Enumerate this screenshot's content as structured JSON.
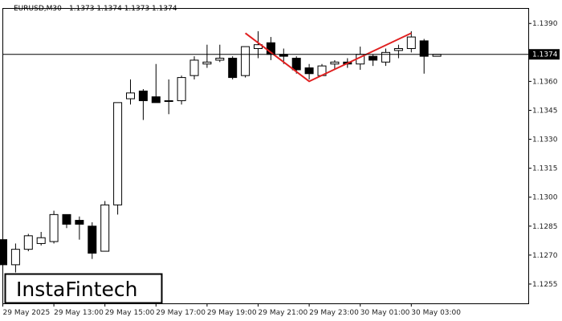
{
  "header": {
    "symbol": "EURUSD,M30",
    "ohlc": "1.1373 1.1374 1.1373 1.1374"
  },
  "logo": {
    "text": "InstaFintech"
  },
  "current_price_label": "1.1374",
  "colors": {
    "background": "#ffffff",
    "candle": "#000000",
    "pattern_line": "#e02020",
    "price_tag": "#000000"
  },
  "chart_data": {
    "type": "candlestick",
    "title": "",
    "xlabel": "",
    "ylabel": "",
    "ylim": [
      1.1245,
      1.1398
    ],
    "y_ticks": [
      "1.1390",
      "1.1375",
      "1.1360",
      "1.1345",
      "1.1330",
      "1.1315",
      "1.1300",
      "1.1285",
      "1.1270",
      "1.1255"
    ],
    "x_ticks": [
      {
        "label": "29 May 2025",
        "index": 0
      },
      {
        "label": "29 May 13:00",
        "index": 4
      },
      {
        "label": "29 May 15:00",
        "index": 8
      },
      {
        "label": "29 May 17:00",
        "index": 12
      },
      {
        "label": "29 May 19:00",
        "index": 16
      },
      {
        "label": "29 May 21:00",
        "index": 20
      },
      {
        "label": "29 May 23:00",
        "index": 24
      },
      {
        "label": "30 May 01:00",
        "index": 28
      },
      {
        "label": "30 May 03:00",
        "index": 32
      }
    ],
    "current_price": 1.1374,
    "candles": [
      {
        "o": 1.1278,
        "h": 1.1281,
        "l": 1.1262,
        "c": 1.1265
      },
      {
        "o": 1.1265,
        "h": 1.1276,
        "l": 1.1261,
        "c": 1.1273
      },
      {
        "o": 1.1273,
        "h": 1.1281,
        "l": 1.1272,
        "c": 1.128
      },
      {
        "o": 1.1276,
        "h": 1.1282,
        "l": 1.1275,
        "c": 1.1279
      },
      {
        "o": 1.1277,
        "h": 1.1293,
        "l": 1.1276,
        "c": 1.1291
      },
      {
        "o": 1.1291,
        "h": 1.1291,
        "l": 1.1284,
        "c": 1.1286
      },
      {
        "o": 1.1288,
        "h": 1.129,
        "l": 1.1278,
        "c": 1.1286
      },
      {
        "o": 1.1285,
        "h": 1.1287,
        "l": 1.1268,
        "c": 1.1271
      },
      {
        "o": 1.1272,
        "h": 1.1298,
        "l": 1.1272,
        "c": 1.1296
      },
      {
        "o": 1.1296,
        "h": 1.1349,
        "l": 1.1291,
        "c": 1.1349
      },
      {
        "o": 1.1351,
        "h": 1.1361,
        "l": 1.1348,
        "c": 1.1354
      },
      {
        "o": 1.1355,
        "h": 1.1356,
        "l": 1.134,
        "c": 1.135
      },
      {
        "o": 1.1352,
        "h": 1.1369,
        "l": 1.1349,
        "c": 1.1349
      },
      {
        "o": 1.135,
        "h": 1.1361,
        "l": 1.1343,
        "c": 1.135
      },
      {
        "o": 1.135,
        "h": 1.1363,
        "l": 1.1348,
        "c": 1.1362
      },
      {
        "o": 1.1363,
        "h": 1.1373,
        "l": 1.1361,
        "c": 1.1371
      },
      {
        "o": 1.1369,
        "h": 1.1379,
        "l": 1.1367,
        "c": 1.137
      },
      {
        "o": 1.1371,
        "h": 1.1379,
        "l": 1.137,
        "c": 1.1372
      },
      {
        "o": 1.1372,
        "h": 1.1373,
        "l": 1.1361,
        "c": 1.1362
      },
      {
        "o": 1.1363,
        "h": 1.1378,
        "l": 1.1362,
        "c": 1.1378
      },
      {
        "o": 1.1377,
        "h": 1.1386,
        "l": 1.1372,
        "c": 1.1379
      },
      {
        "o": 1.138,
        "h": 1.1383,
        "l": 1.1371,
        "c": 1.1374
      },
      {
        "o": 1.1374,
        "h": 1.1377,
        "l": 1.1369,
        "c": 1.1373
      },
      {
        "o": 1.1372,
        "h": 1.1373,
        "l": 1.1364,
        "c": 1.1366
      },
      {
        "o": 1.1367,
        "h": 1.1369,
        "l": 1.1361,
        "c": 1.1364
      },
      {
        "o": 1.1363,
        "h": 1.1369,
        "l": 1.1363,
        "c": 1.1368
      },
      {
        "o": 1.1369,
        "h": 1.1371,
        "l": 1.1366,
        "c": 1.137
      },
      {
        "o": 1.137,
        "h": 1.1372,
        "l": 1.1367,
        "c": 1.1369
      },
      {
        "o": 1.1369,
        "h": 1.1378,
        "l": 1.1366,
        "c": 1.1374
      },
      {
        "o": 1.1373,
        "h": 1.1374,
        "l": 1.1368,
        "c": 1.1371
      },
      {
        "o": 1.137,
        "h": 1.1377,
        "l": 1.1368,
        "c": 1.1375
      },
      {
        "o": 1.1376,
        "h": 1.1379,
        "l": 1.1372,
        "c": 1.1377
      },
      {
        "o": 1.1377,
        "h": 1.1386,
        "l": 1.1375,
        "c": 1.1383
      },
      {
        "o": 1.1381,
        "h": 1.1382,
        "l": 1.1364,
        "c": 1.1373
      },
      {
        "o": 1.1373,
        "h": 1.1374,
        "l": 1.1373,
        "c": 1.1374
      }
    ],
    "pattern": {
      "name": "",
      "points": [
        {
          "index": 19,
          "price": 1.1385
        },
        {
          "index": 24,
          "price": 1.136
        },
        {
          "index": 32,
          "price": 1.1385
        }
      ]
    }
  }
}
